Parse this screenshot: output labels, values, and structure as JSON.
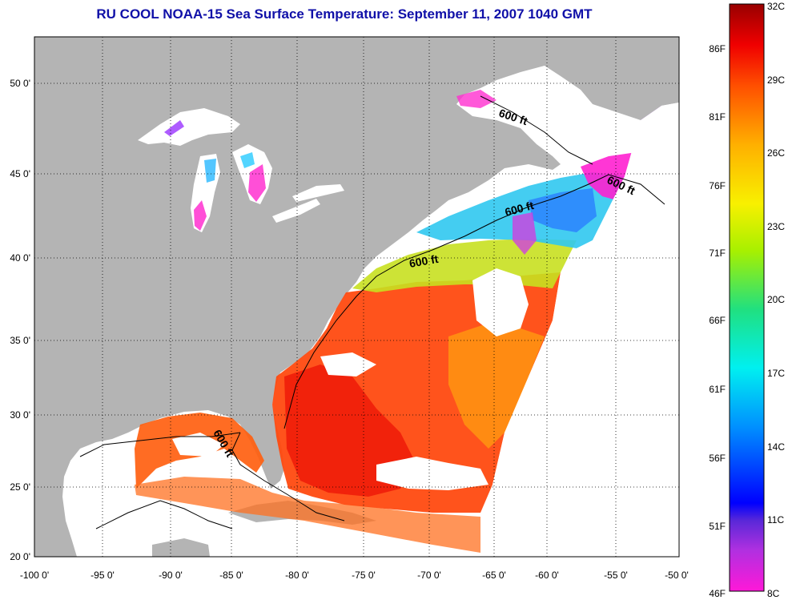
{
  "title": "RU COOL  NOAA-15  Sea Surface Temperature:  September 11, 2007 1040 GMT",
  "map": {
    "x_ticks": [
      "-100 0'",
      "-95 0'",
      "-90 0'",
      "-85 0'",
      "-80 0'",
      "-75 0'",
      "-70 0'",
      "-65 0'",
      "-60 0'",
      "-55 0'",
      "-50 0'"
    ],
    "y_ticks": [
      "50 0'",
      "45 0'",
      "40 0'",
      "35 0'",
      "30 0'",
      "25 0'",
      "20 0'"
    ],
    "contour_labels": [
      "600 ft",
      "600 ft",
      "600 ft",
      "600 ft",
      "600 ft"
    ],
    "colors": {
      "land": "#b4b4b4",
      "cloud": "#ffffff",
      "title": "#1010a8"
    }
  },
  "colorbar": {
    "fahrenheit_labels": [
      "86F",
      "81F",
      "76F",
      "71F",
      "66F",
      "61F",
      "56F",
      "51F",
      "46F"
    ],
    "celsius_labels": [
      "32C",
      "29C",
      "26C",
      "23C",
      "20C",
      "17C",
      "14C",
      "11C",
      "8C"
    ]
  }
}
